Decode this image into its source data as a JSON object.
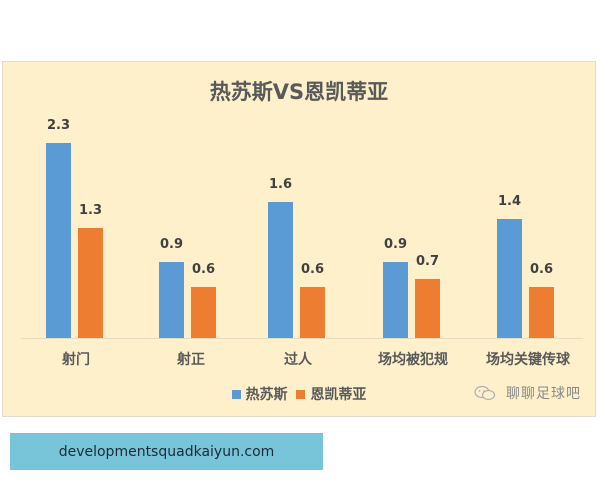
{
  "chart_data": {
    "type": "bar",
    "title": "热苏斯VS恩凯蒂亚",
    "categories": [
      "射门",
      "射正",
      "过人",
      "场均被犯规",
      "场均关键传球"
    ],
    "series": [
      {
        "name": "热苏斯",
        "color": "#5b9bd5",
        "values": [
          2.3,
          0.9,
          1.6,
          0.9,
          1.4
        ]
      },
      {
        "name": "恩凯蒂亚",
        "color": "#ed7d31",
        "values": [
          1.3,
          0.6,
          0.6,
          0.7,
          0.6
        ]
      }
    ],
    "xlabel": "",
    "ylabel": "",
    "ylim": [
      0,
      2.3
    ],
    "grid": false,
    "data_labels": true,
    "legend_position": "bottom"
  },
  "chart": {
    "title": "热苏斯VS恩凯蒂亚",
    "legend": [
      {
        "label": "热苏斯",
        "color": "#5b9bd5"
      },
      {
        "label": "恩凯蒂亚",
        "color": "#ed7d31"
      }
    ],
    "categories": [
      "射门",
      "射正",
      "过人",
      "场均被犯规",
      "场均关键传球"
    ],
    "labels": {
      "s0": [
        "2.3",
        "0.9",
        "1.6",
        "0.9",
        "1.4"
      ],
      "s1": [
        "1.3",
        "0.6",
        "0.6",
        "0.7",
        "0.6"
      ]
    }
  },
  "watermark": {
    "text": "聊聊足球吧",
    "icon": "wechat-icon"
  },
  "footer": {
    "url_text": "developmentsquadkaiyun.com"
  }
}
